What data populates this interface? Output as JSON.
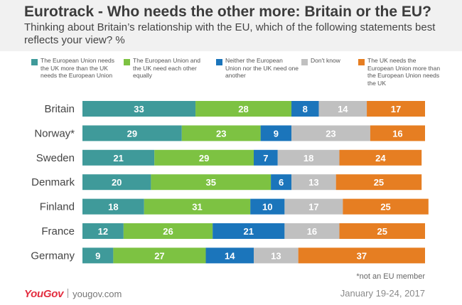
{
  "title": "Eurotrack - Who needs the other more: Britain or the EU?",
  "subtitle": "Thinking about Britain’s relationship with the EU, which of the following statements best reflects your view? %",
  "legend": [
    {
      "label": "The European Union needs the UK more than the UK needs the European Union",
      "color": "#3f9a9a"
    },
    {
      "label": "The European Union and the UK need each other equally",
      "color": "#7dc242"
    },
    {
      "label": "Neither the European Union nor the UK need one another",
      "color": "#1b75bb"
    },
    {
      "label": "Don't know",
      "color": "#c0c0c0"
    },
    {
      "label": "The UK needs the European Union more than the European Union needs the UK",
      "color": "#e67e22"
    }
  ],
  "chart_data": {
    "type": "bar",
    "orientation": "horizontal",
    "stacked": true,
    "categories": [
      "Britain",
      "Norway*",
      "Sweden",
      "Denmark",
      "Finland",
      "France",
      "Germany"
    ],
    "series": [
      {
        "name": "The European Union needs the UK more than the UK needs the European Union",
        "values": [
          33,
          29,
          21,
          20,
          18,
          12,
          9
        ]
      },
      {
        "name": "The European Union and the UK need each other equally",
        "values": [
          28,
          23,
          29,
          35,
          31,
          26,
          27
        ]
      },
      {
        "name": "Neither the European Union nor the UK need one another",
        "values": [
          8,
          9,
          7,
          6,
          10,
          21,
          14
        ]
      },
      {
        "name": "Don't know",
        "values": [
          14,
          23,
          18,
          13,
          17,
          16,
          13
        ]
      },
      {
        "name": "The UK needs the European Union more than the European Union needs the UK",
        "values": [
          17,
          16,
          24,
          25,
          25,
          25,
          37
        ]
      }
    ],
    "xlim": [
      0,
      100
    ],
    "unit": "%"
  },
  "note": "*not an EU member",
  "footer": {
    "logo": "YouGov",
    "site": "yougov.com",
    "date": "January 19-24, 2017"
  }
}
